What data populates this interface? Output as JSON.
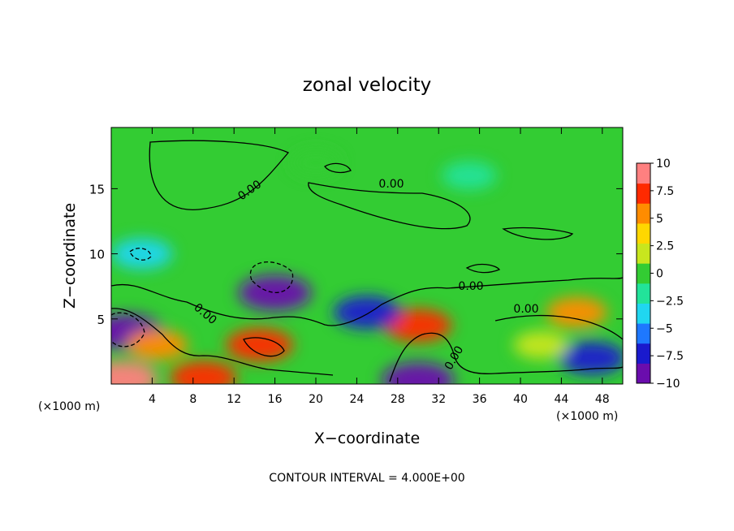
{
  "chart_data": {
    "type": "heatmap",
    "title": "zonal velocity",
    "xlabel": "X−coordinate",
    "ylabel": "Z−coordinate",
    "x_unit_label": "(×1000 m)",
    "x_unit_label_right": "(×1000 m)",
    "footer": "CONTOUR INTERVAL = 4.000E+00",
    "xlim": [
      0,
      50
    ],
    "ylim": [
      0,
      19.7
    ],
    "x_ticks": [
      "4",
      "8",
      "12",
      "16",
      "20",
      "24",
      "28",
      "32",
      "36",
      "40",
      "44",
      "48"
    ],
    "y_ticks": [
      "5",
      "10",
      "15"
    ],
    "colorbar": {
      "range": [
        -10,
        10
      ],
      "tick_labels": [
        "10",
        "7.5",
        "5",
        "2.5",
        "0",
        "−2.5",
        "−5",
        "−7.5",
        "−10"
      ],
      "colors": [
        "#6a0dad",
        "#1a1acd",
        "#1e78ff",
        "#20d6f0",
        "#22e39a",
        "#33cc33",
        "#c8e61e",
        "#ffd700",
        "#ff8c00",
        "#ff2a00",
        "#ff8080"
      ]
    },
    "contour_labels": [
      "0.00",
      "0.00",
      "0.00",
      "0.00",
      "0.00",
      "0.00"
    ],
    "features": [
      {
        "x": 16,
        "z": 7,
        "value": -10
      },
      {
        "x": 1.5,
        "z": 4,
        "value": -10
      },
      {
        "x": 14.5,
        "z": 3,
        "value": 7.5
      },
      {
        "x": 30,
        "z": 4.5,
        "value": 7.5
      },
      {
        "x": 45.5,
        "z": 5.5,
        "value": 5
      },
      {
        "x": 1,
        "z": 0.4,
        "value": 10
      },
      {
        "x": 30,
        "z": 0.3,
        "value": -10
      },
      {
        "x": 47,
        "z": 2,
        "value": -7.5
      },
      {
        "x": 25,
        "z": 5.5,
        "value": -7.5
      },
      {
        "x": 35,
        "z": 16,
        "value": -2.5
      },
      {
        "x": 3,
        "z": 10,
        "value": -5
      },
      {
        "x": 4.5,
        "z": 3,
        "value": 5
      },
      {
        "x": 9,
        "z": 0.5,
        "value": 7.5
      },
      {
        "x": 42,
        "z": 3,
        "value": 2.5
      },
      {
        "x": 20,
        "z": 17,
        "value": 0
      }
    ]
  }
}
